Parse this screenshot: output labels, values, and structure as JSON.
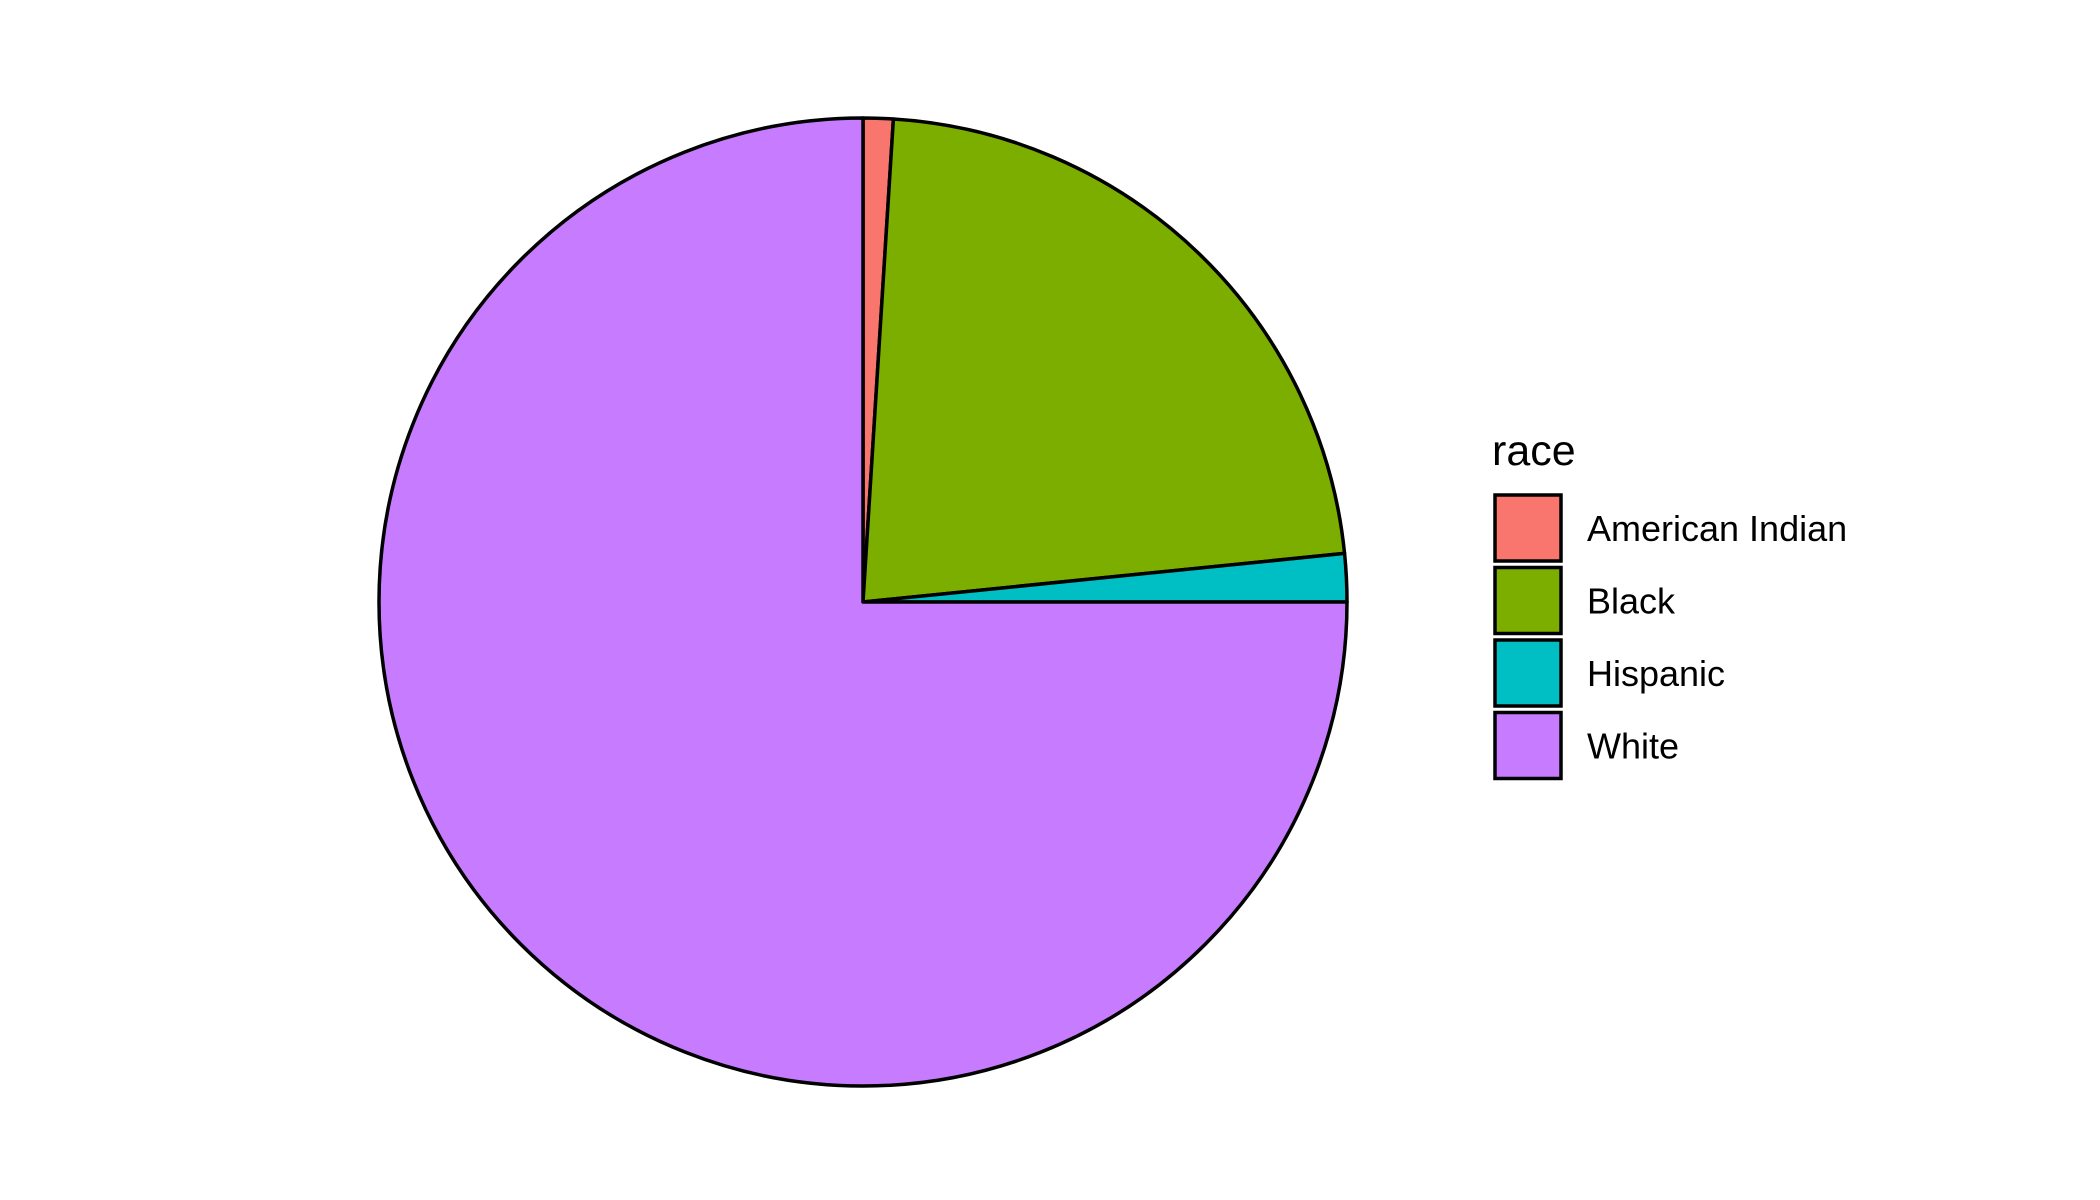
{
  "chart_data": {
    "type": "pie",
    "legend_title": "race",
    "legend_position": "right",
    "start_angle_deg": 0,
    "direction": "clockwise",
    "slices": [
      {
        "label": "American Indian",
        "value": 1.0,
        "color": "#F8766D"
      },
      {
        "label": "Black",
        "value": 22.4,
        "color": "#7CAE00"
      },
      {
        "label": "Hispanic",
        "value": 1.6,
        "color": "#00BFC4"
      },
      {
        "label": "White",
        "value": 75.0,
        "color": "#C77CFF"
      }
    ]
  }
}
